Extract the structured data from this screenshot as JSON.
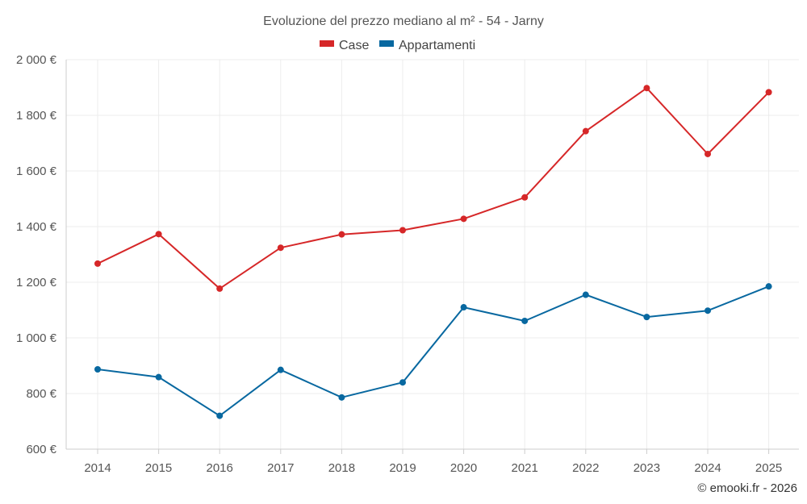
{
  "chart_data": {
    "type": "line",
    "title": "Evoluzione del prezzo mediano al m² - 54 - Jarny",
    "categories": [
      "2014",
      "2015",
      "2016",
      "2017",
      "2018",
      "2019",
      "2020",
      "2021",
      "2022",
      "2023",
      "2024",
      "2025"
    ],
    "series": [
      {
        "name": "Case",
        "color": "#d62728",
        "values": [
          1267,
          1373,
          1177,
          1324,
          1372,
          1387,
          1428,
          1505,
          1743,
          1898,
          1661,
          1883
        ]
      },
      {
        "name": "Appartamenti",
        "color": "#0868a0",
        "values": [
          887,
          859,
          720,
          885,
          786,
          840,
          1110,
          1061,
          1155,
          1075,
          1098,
          1185
        ]
      }
    ],
    "ylim": [
      600,
      2000
    ],
    "yticks": [
      600,
      800,
      1000,
      1200,
      1400,
      1600,
      1800,
      2000
    ],
    "ytick_labels": [
      "600 €",
      "800 €",
      "1 000 €",
      "1 200 €",
      "1 400 €",
      "1 600 €",
      "1 800 €",
      "2 000 €"
    ],
    "xlabel": "",
    "ylabel": "",
    "grid": true,
    "legend": "top-center"
  },
  "credit": "© emooki.fr - 2026"
}
